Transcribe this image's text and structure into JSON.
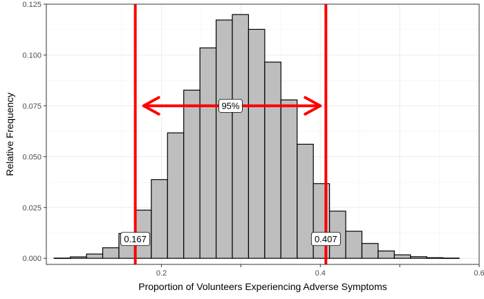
{
  "chart_data": {
    "type": "bar",
    "subtype": "histogram",
    "title": "",
    "xlabel": "Proportion of Volunteers Experiencing Adverse Symptoms",
    "ylabel": "Relative Frequency",
    "xlim": [
      0.055,
      0.6
    ],
    "ylim": [
      -0.003,
      0.125
    ],
    "x_ticks": [
      0.2,
      0.3,
      0.4,
      0.5,
      0.6
    ],
    "x_tick_labels": [
      "0.2",
      "",
      "0.4",
      "",
      "0.6"
    ],
    "y_ticks": [
      0.0,
      0.025,
      0.05,
      0.075,
      0.1,
      0.125
    ],
    "y_tick_labels": [
      "0.000",
      "0.025",
      "0.050",
      "0.075",
      "0.100",
      "0.125"
    ],
    "grid": true,
    "bin_width": 0.0204,
    "bin_centers": [
      0.075,
      0.0954,
      0.1158,
      0.1362,
      0.1566,
      0.177,
      0.1974,
      0.2178,
      0.2382,
      0.2586,
      0.279,
      0.2994,
      0.3198,
      0.3402,
      0.3606,
      0.381,
      0.4014,
      0.4218,
      0.4422,
      0.4626,
      0.483,
      0.5034,
      0.5238,
      0.5442,
      0.5646
    ],
    "values": [
      0.0001,
      0.0007,
      0.0021,
      0.0052,
      0.0122,
      0.0237,
      0.0387,
      0.0617,
      0.0827,
      0.1035,
      0.1172,
      0.1199,
      0.1126,
      0.0965,
      0.0779,
      0.0561,
      0.0367,
      0.0232,
      0.0133,
      0.0073,
      0.0036,
      0.0017,
      0.0008,
      0.0003,
      0.0001
    ],
    "bar_fill": "#bebebe",
    "bar_outline": "#000000",
    "interval_color": "#ff0000",
    "interval": {
      "lower": 0.167,
      "upper": 0.407,
      "lower_label": "0.167",
      "upper_label": "0.407",
      "label_y": 0.0095,
      "arrow_y": 0.075,
      "arrow_label": "95%"
    }
  }
}
